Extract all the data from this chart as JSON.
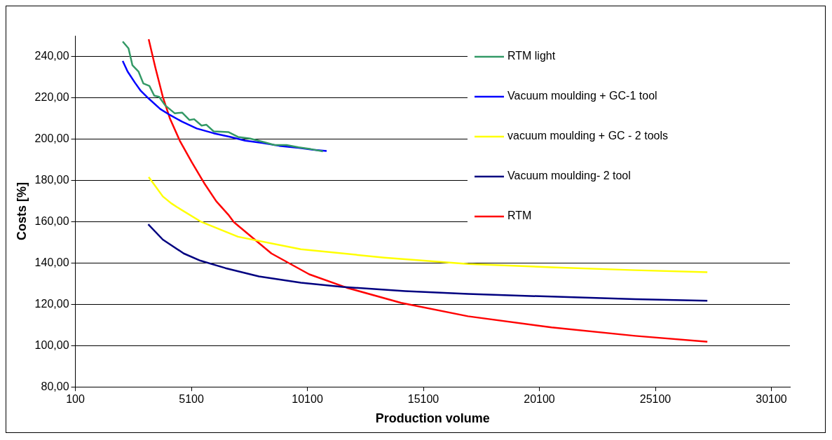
{
  "chart_data": {
    "type": "line",
    "xlabel": "Production volume",
    "ylabel": "Costs [%]",
    "xlim": [
      100,
      30900
    ],
    "xticks": [
      100,
      5100,
      10100,
      15100,
      20100,
      25100,
      30100
    ],
    "ylim": [
      80,
      250
    ],
    "yticks": [
      {
        "value": 80,
        "label": "80,00"
      },
      {
        "value": 100,
        "label": "100,00"
      },
      {
        "value": 120,
        "label": "120,00"
      },
      {
        "value": 140,
        "label": "140,00"
      },
      {
        "value": 160,
        "label": "160,00"
      },
      {
        "value": 180,
        "label": "180,00"
      },
      {
        "value": 200,
        "label": "200,00"
      },
      {
        "value": 220,
        "label": "220,00"
      },
      {
        "value": 240,
        "label": "240,00"
      }
    ],
    "grid": "y",
    "legend": "top right",
    "marker": "none",
    "line_style": "solid",
    "series": [
      {
        "name": "RTM light",
        "color": "#339966",
        "x": [
          2140,
          2390,
          2560,
          2820,
          3030,
          3290,
          3500,
          3710,
          3970,
          4390,
          4700,
          5020,
          5220,
          5540,
          5750,
          6060,
          6690,
          7110,
          7630,
          8160,
          8680,
          9200,
          9720,
          10250,
          10770
        ],
        "values": [
          247.2,
          243.9,
          235.7,
          232.7,
          226.9,
          225.7,
          221,
          220.4,
          216.3,
          212.4,
          212.8,
          209.2,
          209.6,
          206.5,
          206.9,
          203.7,
          203.4,
          201,
          200.2,
          198.7,
          197.1,
          197.1,
          196,
          195.1,
          194
        ]
      },
      {
        "name": "Vacuum moulding + GC-1 tool",
        "color": "#0000ff",
        "x": [
          2140,
          2350,
          2660,
          2920,
          3240,
          3760,
          4180,
          4700,
          5330,
          6060,
          6790,
          7420,
          8160,
          8890,
          9720,
          10350,
          10930
        ],
        "values": [
          237.8,
          232.7,
          227.4,
          223.3,
          219.8,
          214.5,
          211.6,
          208.4,
          205.1,
          202.8,
          201,
          199.2,
          198.1,
          196.7,
          195.7,
          194.8,
          194.2
        ]
      },
      {
        "name": "vacuum moulding + GC - 2 tools",
        "color": "#ffff00",
        "x": [
          3260,
          3870,
          4230,
          4490,
          5490,
          7110,
          9820,
          13420,
          17020,
          20620,
          24230,
          27340
        ],
        "values": [
          181.6,
          172.2,
          168.9,
          167,
          160.1,
          152.7,
          146.6,
          142.6,
          139.5,
          137.9,
          136.5,
          135.5
        ]
      },
      {
        "name": "Vacuum moulding- 2 tool",
        "color": "#000080",
        "x": [
          3240,
          3870,
          4770,
          5490,
          6570,
          8010,
          9820,
          11620,
          14320,
          17020,
          20620,
          24230,
          27340
        ],
        "values": [
          158.7,
          151.3,
          144.6,
          141.1,
          137.5,
          133.5,
          130.4,
          128.4,
          126.4,
          125,
          123.7,
          122.5,
          121.7
        ]
      },
      {
        "name": "RTM",
        "color": "#ff0000",
        "x": [
          3260,
          3550,
          3870,
          4180,
          4600,
          5120,
          5650,
          6170,
          6690,
          6930,
          8550,
          10180,
          11800,
          14140,
          17020,
          20620,
          24230,
          27340
        ],
        "values": [
          248.3,
          234.5,
          220.4,
          209.8,
          199.2,
          188.7,
          178.7,
          169.9,
          163.4,
          159.8,
          144.6,
          134.5,
          128,
          120.7,
          114.2,
          108.8,
          104.7,
          101.9
        ]
      }
    ]
  }
}
